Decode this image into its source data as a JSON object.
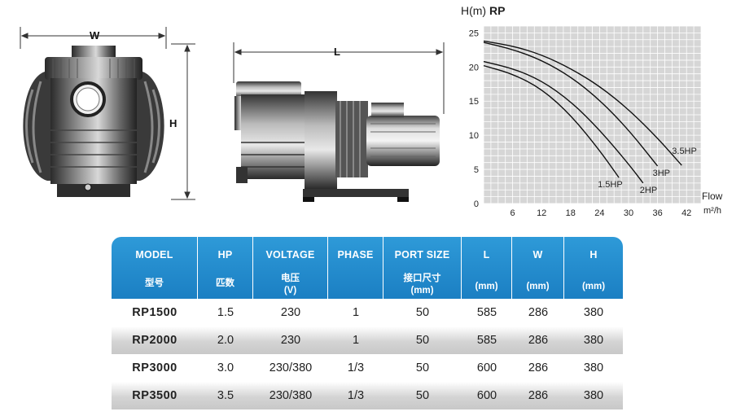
{
  "drawing": {
    "width_label": "W",
    "height_label": "H",
    "length_label": "L"
  },
  "chart_data": {
    "type": "line",
    "title": "H(m)",
    "title_bold": "RP",
    "ylabel": "H(m)",
    "xlabel": "Flow",
    "xunit": "m²/h",
    "xlim": [
      0,
      45
    ],
    "ylim": [
      0,
      26
    ],
    "xticks": [
      "6",
      "12",
      "18",
      "24",
      "30",
      "36",
      "42"
    ],
    "yticks": [
      "0",
      "5",
      "10",
      "15",
      "20",
      "25"
    ],
    "grid": true,
    "series": [
      {
        "name": "1.5HP",
        "x": [
          0,
          6,
          12,
          18,
          24,
          28
        ],
        "y": [
          20.2,
          19,
          16.8,
          13,
          7.8,
          3.8
        ]
      },
      {
        "name": "2HP",
        "x": [
          0,
          6,
          12,
          18,
          24,
          30,
          33
        ],
        "y": [
          20.8,
          19.8,
          18,
          15,
          10.8,
          5.8,
          3
        ]
      },
      {
        "name": "3HP",
        "x": [
          0,
          6,
          12,
          18,
          24,
          30,
          36
        ],
        "y": [
          23.6,
          22.6,
          21,
          18.6,
          15.2,
          10.8,
          5.5
        ]
      },
      {
        "name": "3.5HP",
        "x": [
          0,
          6,
          12,
          18,
          24,
          30,
          36,
          41
        ],
        "y": [
          23.8,
          23.1,
          21.8,
          19.8,
          17.2,
          13.8,
          9.6,
          5.6
        ]
      }
    ]
  },
  "table": {
    "headers": [
      {
        "en": "MODEL",
        "zh": "型号",
        "unit": ""
      },
      {
        "en": "HP",
        "zh": "匹数",
        "unit": ""
      },
      {
        "en": "VOLTAGE",
        "zh": "电压",
        "unit": "(V)"
      },
      {
        "en": "PHASE",
        "zh": "",
        "unit": ""
      },
      {
        "en": "PORT SIZE",
        "zh": "接口尺寸",
        "unit": "(mm)"
      },
      {
        "en": "L",
        "zh": "",
        "unit": "(mm)"
      },
      {
        "en": "W",
        "zh": "",
        "unit": "(mm)"
      },
      {
        "en": "H",
        "zh": "",
        "unit": "(mm)"
      }
    ],
    "rows": [
      {
        "model": "RP1500",
        "hp": "1.5",
        "voltage": "230",
        "phase": "1",
        "port": "50",
        "l": "585",
        "w": "286",
        "h": "380"
      },
      {
        "model": "RP2000",
        "hp": "2.0",
        "voltage": "230",
        "phase": "1",
        "port": "50",
        "l": "585",
        "w": "286",
        "h": "380"
      },
      {
        "model": "RP3000",
        "hp": "3.0",
        "voltage": "230/380",
        "phase": "1/3",
        "port": "50",
        "l": "600",
        "w": "286",
        "h": "380"
      },
      {
        "model": "RP3500",
        "hp": "3.5",
        "voltage": "230/380",
        "phase": "1/3",
        "port": "50",
        "l": "600",
        "w": "286",
        "h": "380"
      }
    ]
  }
}
